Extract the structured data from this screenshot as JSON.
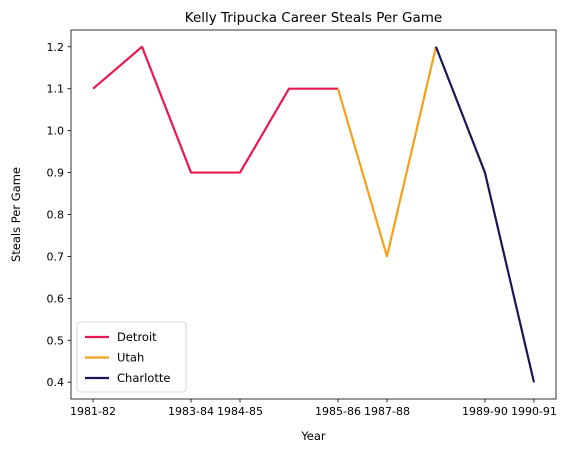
{
  "chart_data": {
    "type": "line",
    "title": "Kelly Tripucka Career Steals Per Game",
    "xlabel": "Year",
    "ylabel": "Steals Per Game",
    "x_tick_labels": [
      "1981-82",
      "1983-84",
      "1984-85",
      "1985-86",
      "1987-88",
      "1989-90",
      "1990-91"
    ],
    "x_tick_positions": [
      0,
      2,
      3,
      5,
      6,
      8,
      9
    ],
    "y_ticks": [
      0.4,
      0.5,
      0.6,
      0.7,
      0.8,
      0.9,
      1.0,
      1.1,
      1.2
    ],
    "ylim": [
      0.36,
      1.24
    ],
    "xlim": [
      -0.45,
      9.45
    ],
    "grid": false,
    "legend_position": "lower-left",
    "series": [
      {
        "name": "Detroit",
        "color": "#e8194e",
        "x": [
          0,
          1,
          2,
          3,
          4,
          5
        ],
        "values": [
          1.1,
          1.2,
          0.9,
          0.9,
          1.1,
          1.1
        ]
      },
      {
        "name": "Utah",
        "color": "#f5a01a",
        "x": [
          5,
          6,
          7
        ],
        "values": [
          1.1,
          0.7,
          1.2
        ]
      },
      {
        "name": "Charlotte",
        "color": "#1d1556",
        "x": [
          7,
          8,
          9
        ],
        "values": [
          1.2,
          0.9,
          0.4
        ]
      }
    ]
  }
}
